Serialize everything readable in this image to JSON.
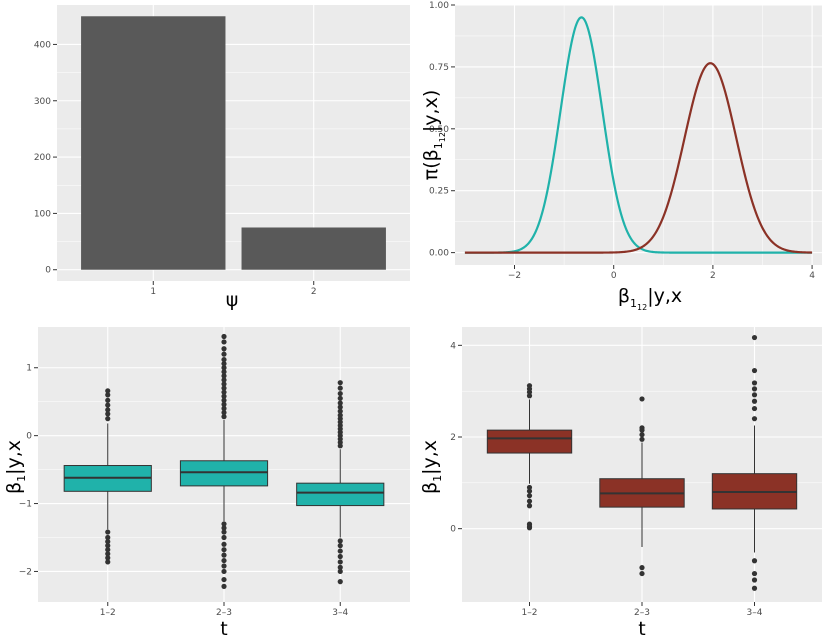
{
  "colors": {
    "bar": "#595959",
    "teal": "#20b2aa",
    "red": "#8b3226",
    "box_teal": "#20b2aa",
    "box_red": "#8b3226",
    "outline": "#333333"
  },
  "chart_data": [
    {
      "id": "bar",
      "type": "bar",
      "categories": [
        "1",
        "2"
      ],
      "values": [
        450,
        75
      ],
      "xlabel": "ψ",
      "ylabel": "",
      "ylim": [
        -20,
        470
      ],
      "yticks": [
        0,
        100,
        200,
        300,
        400
      ],
      "ytick_labels": [
        "0",
        "100",
        "200",
        "300",
        "400"
      ]
    },
    {
      "id": "density",
      "type": "line",
      "xlabel_main": "β",
      "xlabel_sub": "1",
      "xlabel_subsub": "12",
      "xlabel_rest": "|y,x",
      "ylabel_main": "π(β",
      "ylabel_sub": "1",
      "ylabel_subsub": "12",
      "ylabel_rest": "|y,x)",
      "xlim": [
        -3.2,
        4.2
      ],
      "ylim": [
        -0.05,
        1.0
      ],
      "xticks": [
        -2,
        0,
        2,
        4
      ],
      "xtick_labels": [
        "−2",
        "0",
        "2",
        "4"
      ],
      "yticks": [
        0.0,
        0.25,
        0.5,
        0.75,
        1.0
      ],
      "ytick_labels": [
        "0.00",
        "0.25",
        "0.50",
        "0.75",
        "1.00"
      ],
      "series": [
        {
          "name": "teal",
          "color": "#20b2aa",
          "mean": -0.65,
          "sd": 0.42,
          "peak": 0.95,
          "range": [
            -3,
            4
          ]
        },
        {
          "name": "red",
          "color": "#8b3226",
          "mean": 1.95,
          "sd": 0.52,
          "peak": 0.765,
          "range": [
            -3,
            4
          ]
        }
      ]
    },
    {
      "id": "box-teal",
      "type": "box",
      "categories": [
        "1–2",
        "2–3",
        "3–4"
      ],
      "xlabel": "t",
      "ylabel_main": "β",
      "ylabel_sub": "1",
      "ylabel_rest": "|y,x",
      "ylim": [
        -2.45,
        1.6
      ],
      "yticks": [
        -2,
        -1,
        0,
        1
      ],
      "ytick_labels": [
        "−2",
        "−1",
        "0",
        "1"
      ],
      "fill": "#20b2aa",
      "boxes": [
        {
          "q1": -0.82,
          "median": -0.62,
          "q3": -0.44,
          "lo": -1.38,
          "hi": 0.18,
          "outliers": [
            0.25,
            0.32,
            0.38,
            0.45,
            0.52,
            0.6,
            0.66,
            -1.42,
            -1.5,
            -1.56,
            -1.62,
            -1.68,
            -1.74,
            -1.8,
            -1.86
          ]
        },
        {
          "q1": -0.74,
          "median": -0.54,
          "q3": -0.37,
          "lo": -1.26,
          "hi": 0.23,
          "outliers": [
            0.28,
            0.34,
            0.4,
            0.46,
            0.52,
            0.58,
            0.64,
            0.7,
            0.76,
            0.82,
            0.88,
            0.94,
            1.0,
            1.06,
            1.12,
            1.2,
            1.28,
            1.38,
            1.46,
            -1.3,
            -1.36,
            -1.42,
            -1.5,
            -1.6,
            -1.68,
            -1.76,
            -1.84,
            -1.92,
            -2.0,
            -2.12,
            -2.22
          ]
        },
        {
          "q1": -1.03,
          "median": -0.84,
          "q3": -0.7,
          "lo": -1.5,
          "hi": -0.2,
          "outliers": [
            -0.15,
            -0.1,
            -0.05,
            0.0,
            0.05,
            0.1,
            0.15,
            0.2,
            0.25,
            0.3,
            0.36,
            0.42,
            0.48,
            0.55,
            0.62,
            0.7,
            0.78,
            -1.55,
            -1.62,
            -1.7,
            -1.78,
            -1.86,
            -1.94,
            -2.0,
            -2.15
          ]
        }
      ]
    },
    {
      "id": "box-red",
      "type": "box",
      "categories": [
        "1–2",
        "2–3",
        "3–4"
      ],
      "xlabel": "t",
      "ylabel_main": "β",
      "ylabel_sub": "1",
      "ylabel_rest": "|y,x",
      "ylim": [
        -1.6,
        4.4
      ],
      "yticks": [
        0,
        2,
        4
      ],
      "ytick_labels": [
        "0",
        "2",
        "4"
      ],
      "fill": "#8b3226",
      "boxes": [
        {
          "q1": 1.65,
          "median": 1.97,
          "q3": 2.15,
          "lo": 0.98,
          "hi": 2.82,
          "outliers": [
            2.9,
            2.98,
            3.05,
            3.12,
            0.9,
            0.82,
            0.72,
            0.6,
            0.5,
            0.1,
            0.05,
            0.02
          ]
        },
        {
          "q1": 0.47,
          "median": 0.77,
          "q3": 1.09,
          "lo": -0.4,
          "hi": 1.88,
          "outliers": [
            1.95,
            2.05,
            2.15,
            2.2,
            2.83,
            -0.85,
            -0.98
          ]
        },
        {
          "q1": 0.43,
          "median": 0.8,
          "q3": 1.2,
          "lo": -0.52,
          "hi": 2.25,
          "outliers": [
            2.4,
            2.62,
            2.78,
            2.92,
            3.05,
            3.18,
            3.45,
            4.17,
            -0.7,
            -0.98,
            -1.12,
            -1.3
          ]
        }
      ]
    }
  ]
}
